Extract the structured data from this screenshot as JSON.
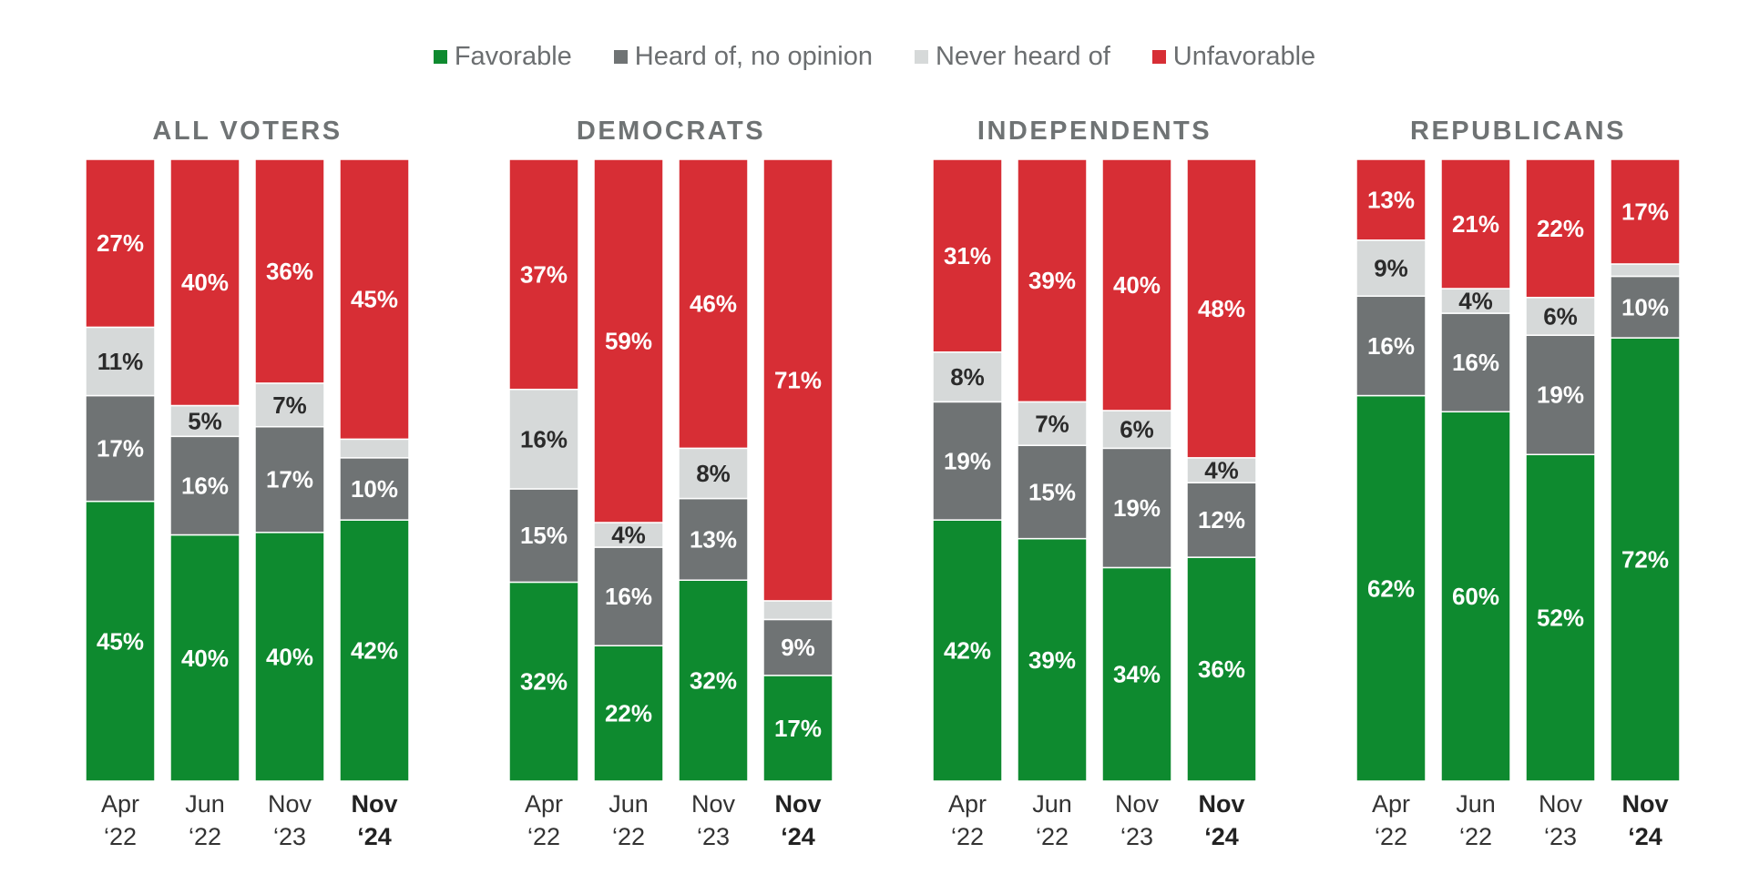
{
  "legend": [
    {
      "label": "Favorable",
      "color": "#0e8a2f"
    },
    {
      "label": "Heard of, no opinion",
      "color": "#6f7374"
    },
    {
      "label": "Never heard of",
      "color": "#d6d9d9"
    },
    {
      "label": "Unfavorable",
      "color": "#d72e35"
    }
  ],
  "chart_data": [
    {
      "type": "bar",
      "stacked": true,
      "title": "ALL VOTERS",
      "categories": [
        [
          "Apr",
          "‘22"
        ],
        [
          "Jun",
          "‘22"
        ],
        [
          "Nov",
          "‘23"
        ],
        [
          "Nov",
          "‘24"
        ]
      ],
      "bold_category_index": 3,
      "series": [
        {
          "name": "Favorable",
          "values": [
            45,
            40,
            40,
            42
          ],
          "labels": [
            "45%",
            "40%",
            "40%",
            "42%"
          ]
        },
        {
          "name": "Heard of, no opinion",
          "values": [
            17,
            16,
            17,
            10
          ],
          "labels": [
            "17%",
            "16%",
            "17%",
            "10%"
          ]
        },
        {
          "name": "Never heard of",
          "values": [
            11,
            5,
            7,
            3
          ],
          "labels": [
            "11%",
            "5%",
            "7%",
            ""
          ]
        },
        {
          "name": "Unfavorable",
          "values": [
            27,
            40,
            36,
            45
          ],
          "labels": [
            "27%",
            "40%",
            "36%",
            "45%"
          ]
        }
      ]
    },
    {
      "type": "bar",
      "stacked": true,
      "title": "DEMOCRATS",
      "categories": [
        [
          "Apr",
          "‘22"
        ],
        [
          "Jun",
          "‘22"
        ],
        [
          "Nov",
          "‘23"
        ],
        [
          "Nov",
          "‘24"
        ]
      ],
      "bold_category_index": 3,
      "series": [
        {
          "name": "Favorable",
          "values": [
            32,
            22,
            32,
            17
          ],
          "labels": [
            "32%",
            "22%",
            "32%",
            "17%"
          ]
        },
        {
          "name": "Heard of, no opinion",
          "values": [
            15,
            16,
            13,
            9
          ],
          "labels": [
            "15%",
            "16%",
            "13%",
            "9%"
          ]
        },
        {
          "name": "Never heard of",
          "values": [
            16,
            4,
            8,
            3
          ],
          "labels": [
            "16%",
            "4%",
            "8%",
            ""
          ]
        },
        {
          "name": "Unfavorable",
          "values": [
            37,
            59,
            46,
            71
          ],
          "labels": [
            "37%",
            "59%",
            "46%",
            "71%"
          ]
        }
      ]
    },
    {
      "type": "bar",
      "stacked": true,
      "title": "INDEPENDENTS",
      "categories": [
        [
          "Apr",
          "‘22"
        ],
        [
          "Jun",
          "‘22"
        ],
        [
          "Nov",
          "‘23"
        ],
        [
          "Nov",
          "‘24"
        ]
      ],
      "bold_category_index": 3,
      "series": [
        {
          "name": "Favorable",
          "values": [
            42,
            39,
            34,
            36
          ],
          "labels": [
            "42%",
            "39%",
            "34%",
            "36%"
          ]
        },
        {
          "name": "Heard of, no opinion",
          "values": [
            19,
            15,
            19,
            12
          ],
          "labels": [
            "19%",
            "15%",
            "19%",
            "12%"
          ]
        },
        {
          "name": "Never heard of",
          "values": [
            8,
            7,
            6,
            4
          ],
          "labels": [
            "8%",
            "7%",
            "6%",
            "4%"
          ]
        },
        {
          "name": "Unfavorable",
          "values": [
            31,
            39,
            40,
            48
          ],
          "labels": [
            "31%",
            "39%",
            "40%",
            "48%"
          ]
        }
      ]
    },
    {
      "type": "bar",
      "stacked": true,
      "title": "REPUBLICANS",
      "categories": [
        [
          "Apr",
          "‘22"
        ],
        [
          "Jun",
          "‘22"
        ],
        [
          "Nov",
          "‘23"
        ],
        [
          "Nov",
          "‘24"
        ]
      ],
      "bold_category_index": 3,
      "series": [
        {
          "name": "Favorable",
          "values": [
            62,
            60,
            52,
            72
          ],
          "labels": [
            "62%",
            "60%",
            "52%",
            "72%"
          ]
        },
        {
          "name": "Heard of, no opinion",
          "values": [
            16,
            16,
            19,
            10
          ],
          "labels": [
            "16%",
            "16%",
            "19%",
            "10%"
          ]
        },
        {
          "name": "Never heard of",
          "values": [
            9,
            4,
            6,
            2
          ],
          "labels": [
            "9%",
            "4%",
            "6%",
            ""
          ]
        },
        {
          "name": "Unfavorable",
          "values": [
            13,
            21,
            22,
            17
          ],
          "labels": [
            "13%",
            "21%",
            "22%",
            "17%"
          ]
        }
      ]
    }
  ]
}
